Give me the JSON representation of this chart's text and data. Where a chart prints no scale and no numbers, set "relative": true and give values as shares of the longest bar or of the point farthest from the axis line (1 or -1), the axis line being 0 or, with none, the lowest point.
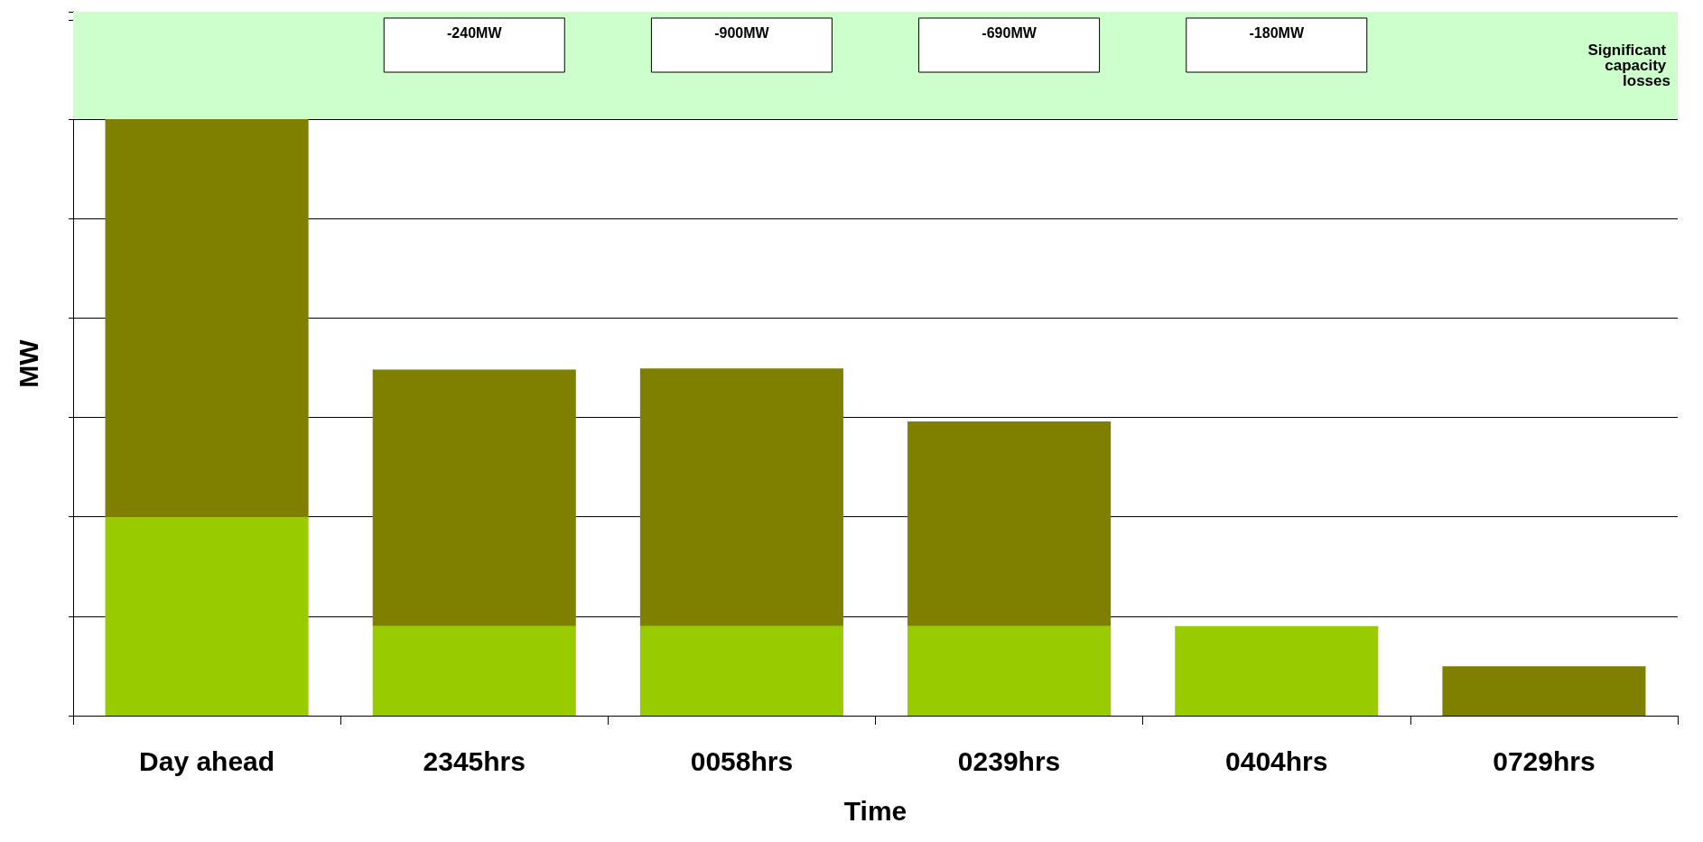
{
  "chart_data": {
    "type": "bar",
    "stacked": true,
    "relative": true,
    "xlabel": "Time",
    "ylabel": "MW",
    "categories": [
      "Day ahead",
      "2345hrs",
      "0058hrs",
      "0239hrs",
      "0404hrs",
      "0729hrs"
    ],
    "series": [
      {
        "color": "#99cc00",
        "values": [
          0.333,
          0.15,
          0.15,
          0.15,
          0.15,
          0
        ]
      },
      {
        "color": "#808000",
        "values": [
          0.667,
          0.43,
          0.432,
          0.343,
          0,
          0.083
        ]
      }
    ],
    "bands": [
      {
        "axis": "y",
        "from": 1,
        "to": 1.18,
        "label": "Significant capacity losses",
        "color": "#ccffcc"
      }
    ],
    "annotations": [
      "-240MW",
      "-900MW",
      "-690MW",
      "-180MW"
    ],
    "grid": "y"
  }
}
